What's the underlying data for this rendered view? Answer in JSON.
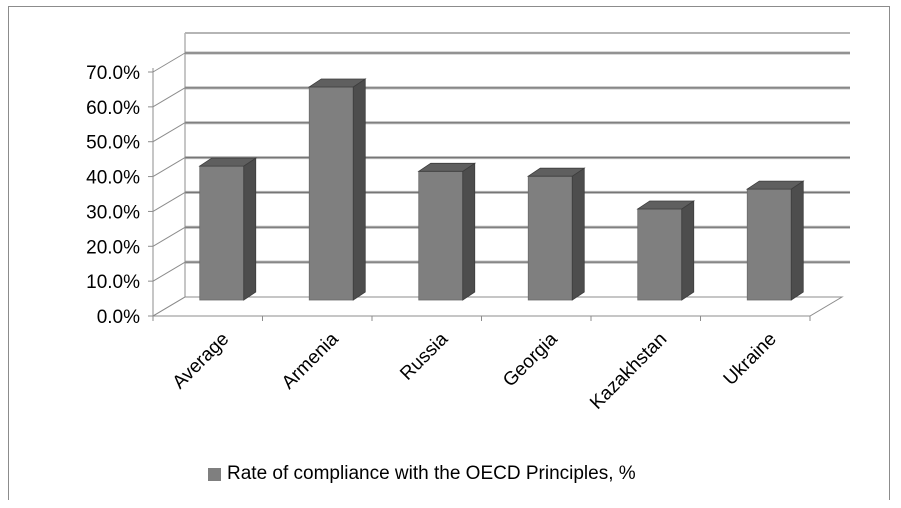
{
  "chart_data": {
    "type": "bar",
    "categories": [
      "Average",
      "Armenia",
      "Russia",
      "Georgia",
      "Kazakhstan",
      "Ukraine"
    ],
    "series": [
      {
        "name": "Rate of compliance with the OECD Principles, %",
        "values": [
          45.3,
          68.0,
          43.8,
          42.4,
          33.0,
          38.7
        ]
      }
    ],
    "ylim": [
      0,
      70
    ],
    "yticks": [
      "0.0%",
      "10.0%",
      "20.0%",
      "30.0%",
      "40.0%",
      "50.0%",
      "60.0%",
      "70.0%"
    ],
    "grid": true,
    "legend_position": "bottom",
    "bar_color": "#7f7f7f",
    "bar_side_color": "#4d4d4d",
    "bar_top_color": "#5f5f5f"
  },
  "legend": {
    "label": "Rate of compliance with the OECD Principles, %"
  }
}
